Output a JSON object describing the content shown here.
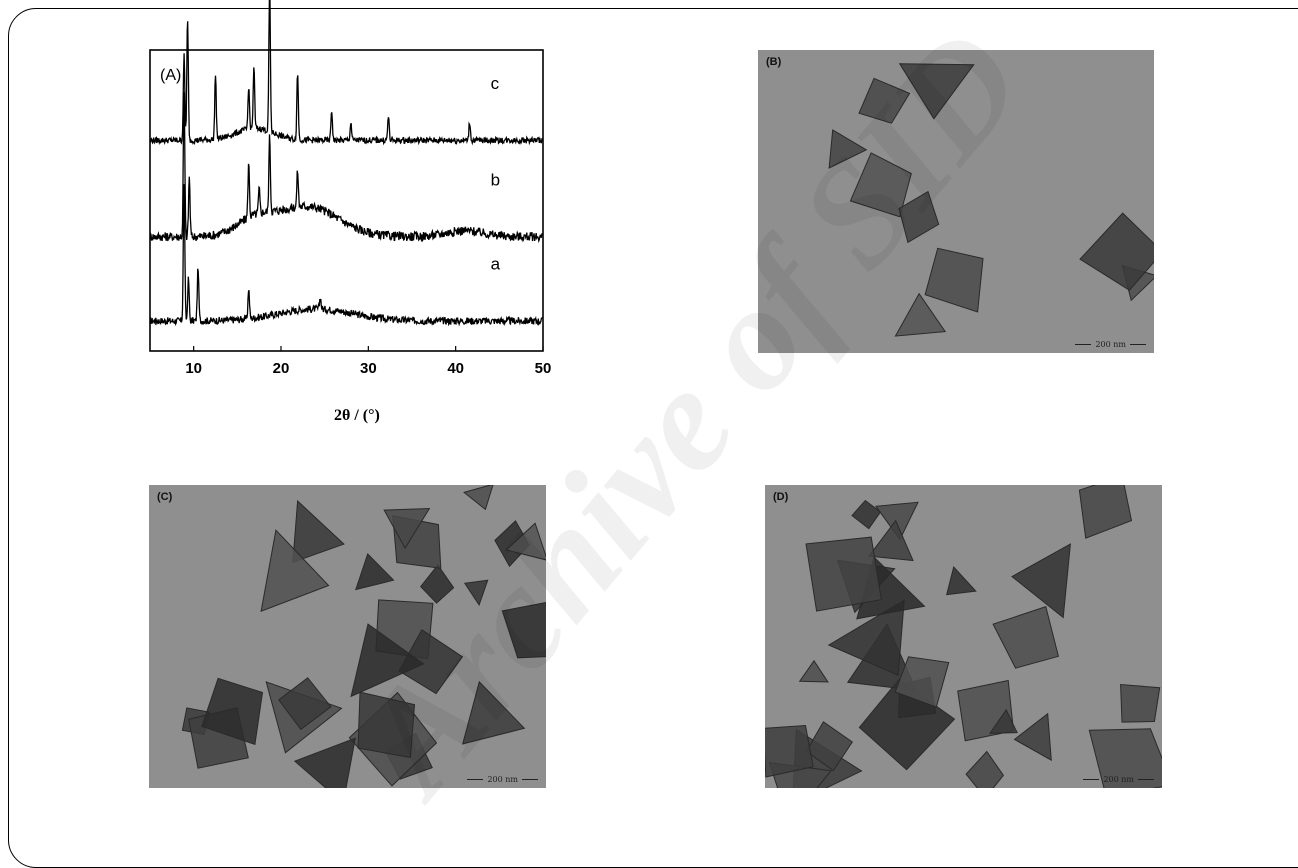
{
  "panels": {
    "a": {
      "label": "(A)",
      "xlabel": "2θ / (°)"
    },
    "b": {
      "label": "(B)",
      "scale_bar": "200 nm"
    },
    "c": {
      "label": "(C)",
      "scale_bar": "200 nm"
    },
    "d": {
      "label": "(D)",
      "scale_bar": "200 nm"
    }
  },
  "watermark": "Archive of SID",
  "chart_data": {
    "type": "line",
    "title": "(A)",
    "xlabel": "2θ / (°)",
    "ylabel": "",
    "xlim": [
      5,
      50
    ],
    "xticks": [
      10,
      20,
      30,
      40,
      50
    ],
    "yticks": false,
    "grid": false,
    "series": [
      {
        "name": "a",
        "baseline": 0.1,
        "noise": 0.012,
        "peaks": [
          [
            8.9,
            0.45
          ],
          [
            9.4,
            0.14
          ],
          [
            10.5,
            0.18
          ],
          [
            16.3,
            0.1
          ],
          [
            24.5,
            0.04
          ]
        ],
        "humps": [
          [
            24,
            0.04,
            6
          ]
        ]
      },
      {
        "name": "b",
        "baseline": 0.38,
        "noise": 0.015,
        "peaks": [
          [
            8.9,
            0.47
          ],
          [
            9.5,
            0.2
          ],
          [
            16.3,
            0.18
          ],
          [
            17.5,
            0.08
          ],
          [
            18.7,
            0.25
          ],
          [
            21.9,
            0.12
          ]
        ],
        "humps": [
          [
            23,
            0.1,
            5
          ],
          [
            17,
            0.05,
            3
          ],
          [
            41,
            0.02,
            3
          ]
        ]
      },
      {
        "name": "c",
        "baseline": 0.7,
        "noise": 0.01,
        "peaks": [
          [
            8.9,
            0.28
          ],
          [
            9.3,
            0.4
          ],
          [
            12.5,
            0.22
          ],
          [
            16.3,
            0.14
          ],
          [
            16.9,
            0.2
          ],
          [
            18.7,
            0.48
          ],
          [
            21.9,
            0.22
          ],
          [
            25.8,
            0.1
          ],
          [
            28.0,
            0.06
          ],
          [
            32.3,
            0.08
          ],
          [
            41.6,
            0.06
          ]
        ],
        "humps": [
          [
            17,
            0.04,
            3
          ]
        ]
      }
    ]
  }
}
